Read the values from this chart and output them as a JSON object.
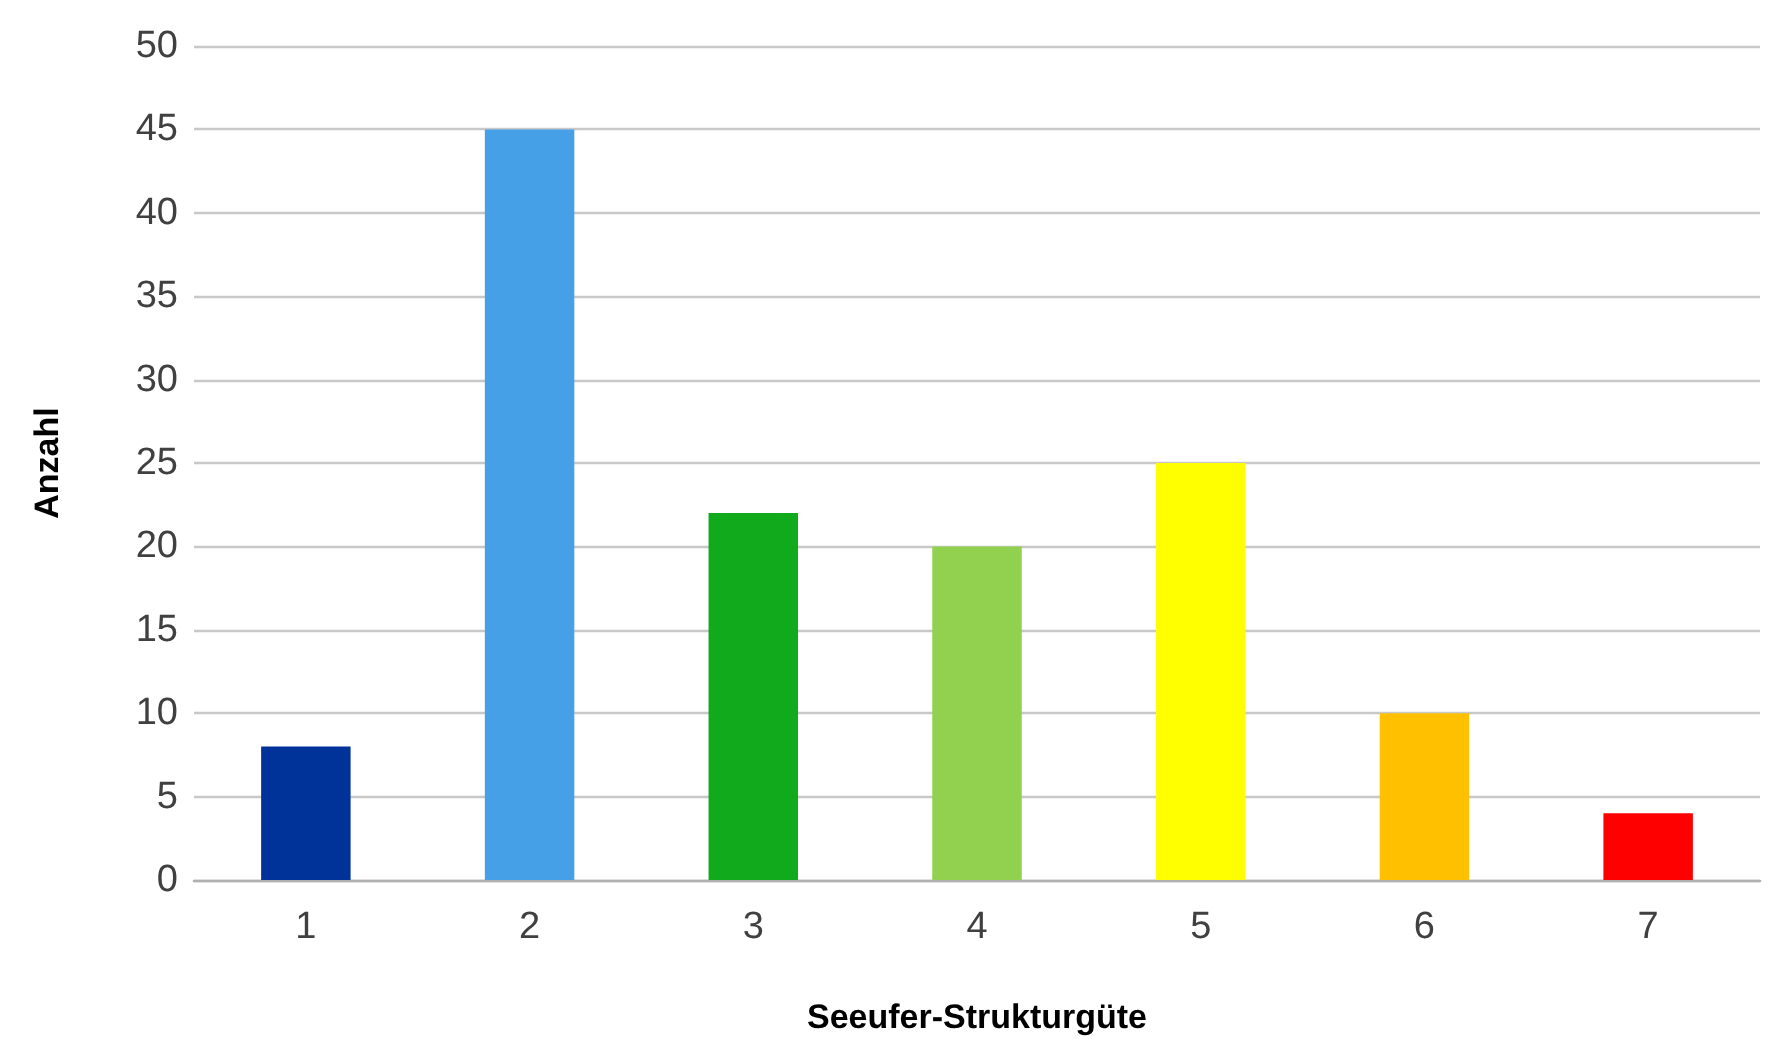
{
  "chart_data": {
    "type": "bar",
    "xlabel": "Seeufer-Strukturgüte",
    "ylabel": "Anzahl",
    "categories": [
      "1",
      "2",
      "3",
      "4",
      "5",
      "6",
      "7"
    ],
    "values": [
      8,
      45,
      22,
      20,
      25,
      10,
      4
    ],
    "colors": [
      "#003399",
      "#46a0e8",
      "#10aa1c",
      "#92d050",
      "#ffff00",
      "#ffc000",
      "#ff0000"
    ],
    "ylim": [
      0,
      50
    ],
    "yticks": [
      0,
      5,
      10,
      15,
      20,
      25,
      30,
      35,
      40,
      45,
      50
    ],
    "grid": "y"
  }
}
